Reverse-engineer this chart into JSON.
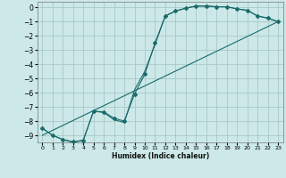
{
  "background_color": "#cce8e8",
  "grid_color": "#aac8c8",
  "line_color": "#1a6b6b",
  "xlabel": "Humidex (Indice chaleur)",
  "xlim": [
    -0.5,
    23.5
  ],
  "ylim": [
    -9.5,
    0.4
  ],
  "yticks": [
    0,
    -1,
    -2,
    -3,
    -4,
    -5,
    -6,
    -7,
    -8,
    -9
  ],
  "xticks": [
    0,
    1,
    2,
    3,
    4,
    5,
    6,
    7,
    8,
    9,
    10,
    11,
    12,
    13,
    14,
    15,
    16,
    17,
    18,
    19,
    20,
    21,
    22,
    23
  ],
  "series": [
    {
      "x": [
        0,
        1,
        2,
        3,
        4,
        5,
        6,
        7,
        8,
        9,
        10,
        11,
        12,
        13,
        14,
        15,
        16,
        17,
        18,
        19,
        20,
        21,
        22,
        23
      ],
      "y": [
        -8.5,
        -9.0,
        -9.3,
        -9.45,
        -9.35,
        -7.3,
        -7.35,
        -7.8,
        -8.0,
        -6.1,
        -4.7,
        -2.5,
        -0.6,
        -0.25,
        -0.05,
        0.1,
        0.1,
        0.05,
        0.05,
        -0.1,
        -0.2,
        -0.6,
        -0.75,
        -1.0
      ],
      "marker": "D",
      "markersize": 2.0
    },
    {
      "x": [
        0,
        1,
        2,
        3,
        4,
        5,
        6,
        7,
        8,
        9,
        10,
        11,
        12,
        13,
        14,
        15,
        16,
        17,
        18,
        19,
        20,
        21,
        22,
        23
      ],
      "y": [
        -8.5,
        -9.0,
        -9.3,
        -9.5,
        -9.35,
        -7.3,
        -7.4,
        -7.9,
        -8.1,
        -5.8,
        -4.5,
        -2.6,
        -0.6,
        -0.25,
        -0.05,
        0.1,
        0.1,
        0.05,
        0.05,
        -0.1,
        -0.2,
        -0.6,
        -0.75,
        -1.0
      ],
      "marker": null,
      "markersize": 0
    },
    {
      "x": [
        0,
        23
      ],
      "y": [
        -9.0,
        -1.0
      ],
      "marker": null,
      "markersize": 0
    }
  ]
}
